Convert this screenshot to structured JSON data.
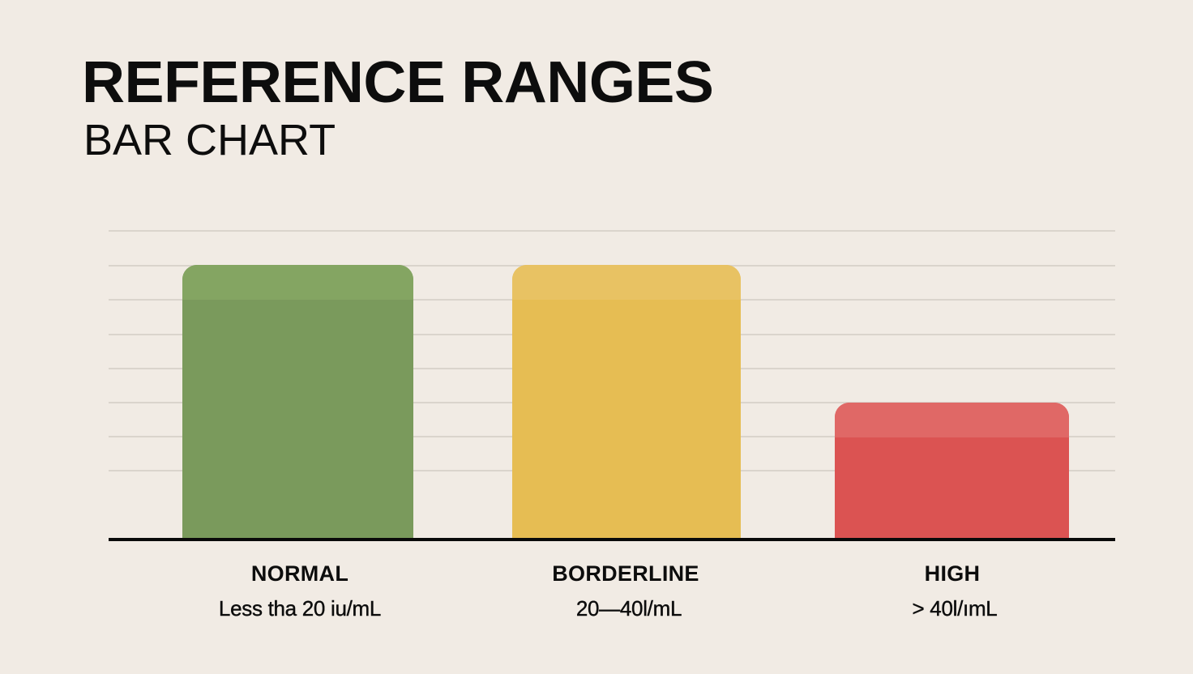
{
  "header": {
    "title": "REFERENCE RANGES",
    "subtitle": "BAR CHART"
  },
  "colors": {
    "background": "#F1EBE4",
    "gridline": "#DAD4CC",
    "baseline": "#0A0A0A",
    "normal": "#7A9A5C",
    "normal_top": "#84A562",
    "borderline": "#E6BD53",
    "borderline_top": "#E8C263",
    "high": "#DB5352",
    "high_top": "#E06866"
  },
  "categories": [
    {
      "label": "NORMAL",
      "range": "Less tha 20 iu/mL"
    },
    {
      "label": "BORDERLINE",
      "range": "20—40l/mL"
    },
    {
      "label": "HIGH",
      "range": "> 40l/ımL"
    }
  ],
  "chart_data": {
    "type": "bar",
    "title": "REFERENCE RANGES",
    "subtitle": "BAR CHART",
    "categories": [
      "NORMAL",
      "BORDERLINE",
      "HIGH"
    ],
    "category_sublabels": [
      "Less tha 20 iu/mL",
      "20—40l/mL",
      "> 40l/ımL"
    ],
    "values": [
      8,
      8,
      4
    ],
    "colors": [
      "#7A9A5C",
      "#E6BD53",
      "#DB5352"
    ],
    "xlabel": "",
    "ylabel": "",
    "ylim": [
      0,
      9
    ],
    "y_ticks_labeled": false,
    "grid": true,
    "gridline_count": 8,
    "legend": "none"
  }
}
